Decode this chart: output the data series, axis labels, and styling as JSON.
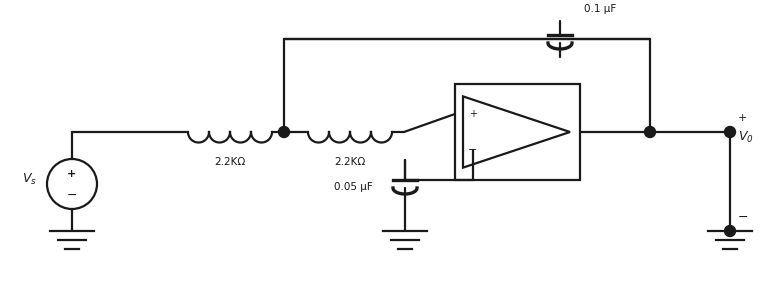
{
  "bg_color": "#ffffff",
  "line_color": "#1a1a1a",
  "line_width": 1.6,
  "fig_width": 7.75,
  "fig_height": 3.04,
  "dpi": 100,
  "r1_label": "2.2KΩ",
  "r2_label": "2.2KΩ",
  "c1_label": "0.1 μF",
  "c2_label": "0.05 μF",
  "vs_label": "V_s",
  "v0_label": "V_0"
}
